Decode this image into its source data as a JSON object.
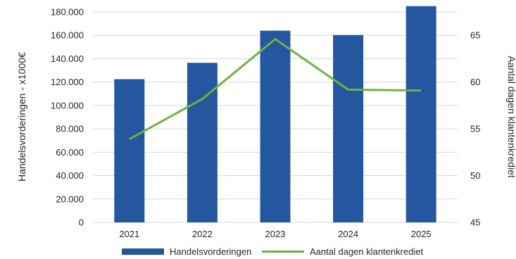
{
  "chart_data": {
    "type": "bar",
    "categories": [
      "2021",
      "2022",
      "2023",
      "2024",
      "2025"
    ],
    "series": [
      {
        "name": "Handelsvorderingen",
        "type": "bar",
        "axis": "left",
        "color": "#2457A0",
        "values": [
          122500,
          136500,
          164000,
          160300,
          185000
        ]
      },
      {
        "name": "Aantal dagen klantenkrediet",
        "type": "line",
        "axis": "right",
        "color": "#6DB33F",
        "values": [
          53.9,
          58.2,
          64.6,
          59.2,
          59.1
        ]
      }
    ],
    "ylabel": "Handelsvorderingen - x1000€",
    "y2label": "Aantal dagen klantenkrediet",
    "ylim": [
      0,
      180000
    ],
    "y2lim": [
      45,
      67.5
    ],
    "yticks": [
      "0",
      "20.000",
      "40.000",
      "60.000",
      "80.000",
      "100.000",
      "120.000",
      "140.000",
      "160.000",
      "180.000"
    ],
    "y2ticks": [
      "45",
      "50",
      "55",
      "60",
      "65"
    ],
    "grid": true,
    "legend_position": "bottom"
  }
}
